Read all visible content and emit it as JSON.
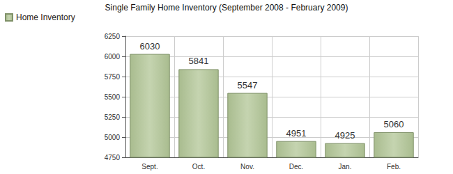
{
  "chart_data": {
    "type": "bar",
    "title": "Single Family Home Inventory (September 2008 - February 2009)",
    "categories": [
      "Sept.",
      "Oct.",
      "Nov.",
      "Dec.",
      "Jan.",
      "Feb."
    ],
    "series": [
      {
        "name": "Home Inventory",
        "color": "#a9bc8f",
        "values": [
          6030,
          5841,
          5547,
          4951,
          4925,
          5060
        ]
      }
    ],
    "ylim": [
      4750,
      6250
    ],
    "yticks": [
      4750,
      5000,
      5250,
      5500,
      5750,
      6000,
      6250
    ],
    "grid": true,
    "data_labels": true,
    "legend": "top-left"
  }
}
